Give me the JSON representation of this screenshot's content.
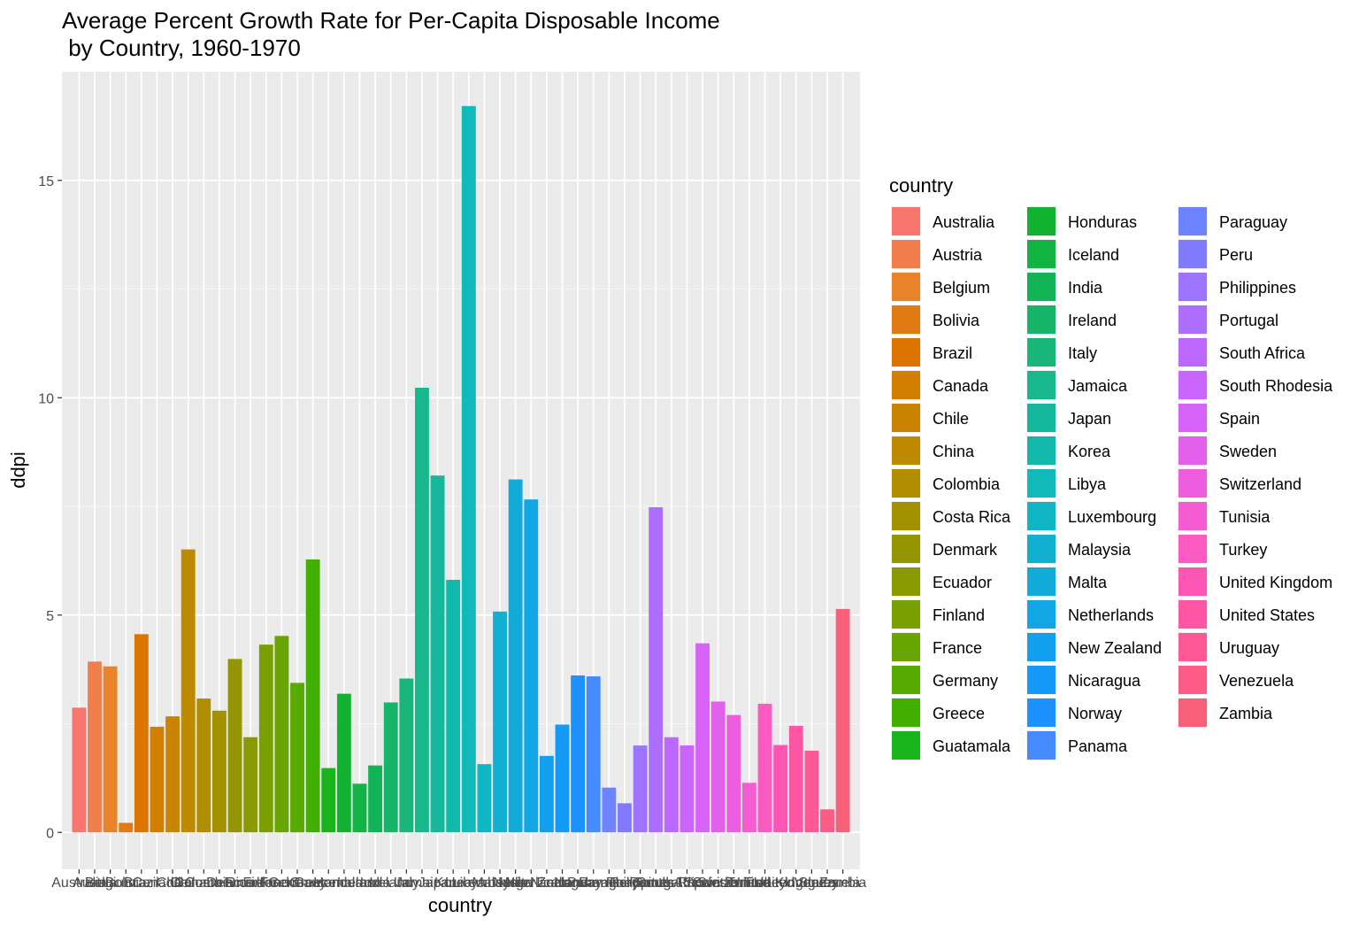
{
  "chart_data": {
    "type": "bar",
    "title_lines": [
      "Average Percent Growth Rate for Per-Capita Disposable Income",
      " by Country, 1960-1970"
    ],
    "xlabel": "country",
    "ylabel": "ddpi",
    "ylim": [
      -0.85,
      17.5
    ],
    "yticks": [
      0,
      5,
      10,
      15
    ],
    "grid": true,
    "legend": {
      "title": "country",
      "placement": "right"
    },
    "categories": [
      "Australia",
      "Austria",
      "Belgium",
      "Bolivia",
      "Brazil",
      "Canada",
      "Chile",
      "China",
      "Colombia",
      "Costa Rica",
      "Denmark",
      "Ecuador",
      "Finland",
      "France",
      "Germany",
      "Greece",
      "Guatamala",
      "Honduras",
      "Iceland",
      "India",
      "Ireland",
      "Italy",
      "Jamaica",
      "Japan",
      "Korea",
      "Libya",
      "Luxembourg",
      "Malaysia",
      "Malta",
      "Netherlands",
      "New Zealand",
      "Nicaragua",
      "Norway",
      "Panama",
      "Paraguay",
      "Peru",
      "Philippines",
      "Portugal",
      "South Africa",
      "South Rhodesia",
      "Spain",
      "Sweden",
      "Switzerland",
      "Tunisia",
      "Turkey",
      "United Kingdom",
      "United States",
      "Uruguay",
      "Venezuela",
      "Zambia"
    ],
    "values": [
      2.87,
      3.93,
      3.82,
      0.22,
      4.56,
      2.43,
      2.67,
      6.51,
      3.08,
      2.8,
      3.99,
      2.19,
      4.32,
      4.52,
      3.44,
      6.28,
      1.48,
      3.19,
      1.12,
      1.54,
      2.99,
      3.54,
      10.23,
      8.21,
      5.81,
      16.71,
      1.57,
      5.08,
      8.12,
      7.66,
      1.76,
      2.48,
      3.61,
      3.59,
      1.03,
      0.67,
      2.0,
      7.48,
      2.19,
      2.0,
      4.35,
      3.01,
      2.7,
      1.14,
      2.96,
      2.01,
      2.45,
      1.88,
      0.53,
      5.14
    ],
    "colors": [
      "#F8766D",
      "#F17F4E",
      "#E9842C",
      "#E17C14",
      "#DB7500",
      "#D27F00",
      "#CA8500",
      "#BD8A00",
      "#B08E00",
      "#A39200",
      "#939600",
      "#889A00",
      "#79A000",
      "#69A500",
      "#56AA00",
      "#41AE00",
      "#19B31B",
      "#12B132",
      "#13B444",
      "#12B356",
      "#16B56A",
      "#18B67B",
      "#19B78C",
      "#15B89C",
      "#12B8AA",
      "#11B9B9",
      "#10B6C5",
      "#11B0D0",
      "#12ABD9",
      "#13A6E4",
      "#129FEE",
      "#1499F7",
      "#1B92FF",
      "#468AFF",
      "#6D83FF",
      "#817AFF",
      "#9C74FF",
      "#AD6DFF",
      "#BC67FF",
      "#C964FF",
      "#D762F7",
      "#E360EA",
      "#EC5DDF",
      "#F55CD1",
      "#FB5BC1",
      "#FC55B4",
      "#FE55A5",
      "#FE5896",
      "#FC5C86",
      "#F8607A"
    ]
  }
}
